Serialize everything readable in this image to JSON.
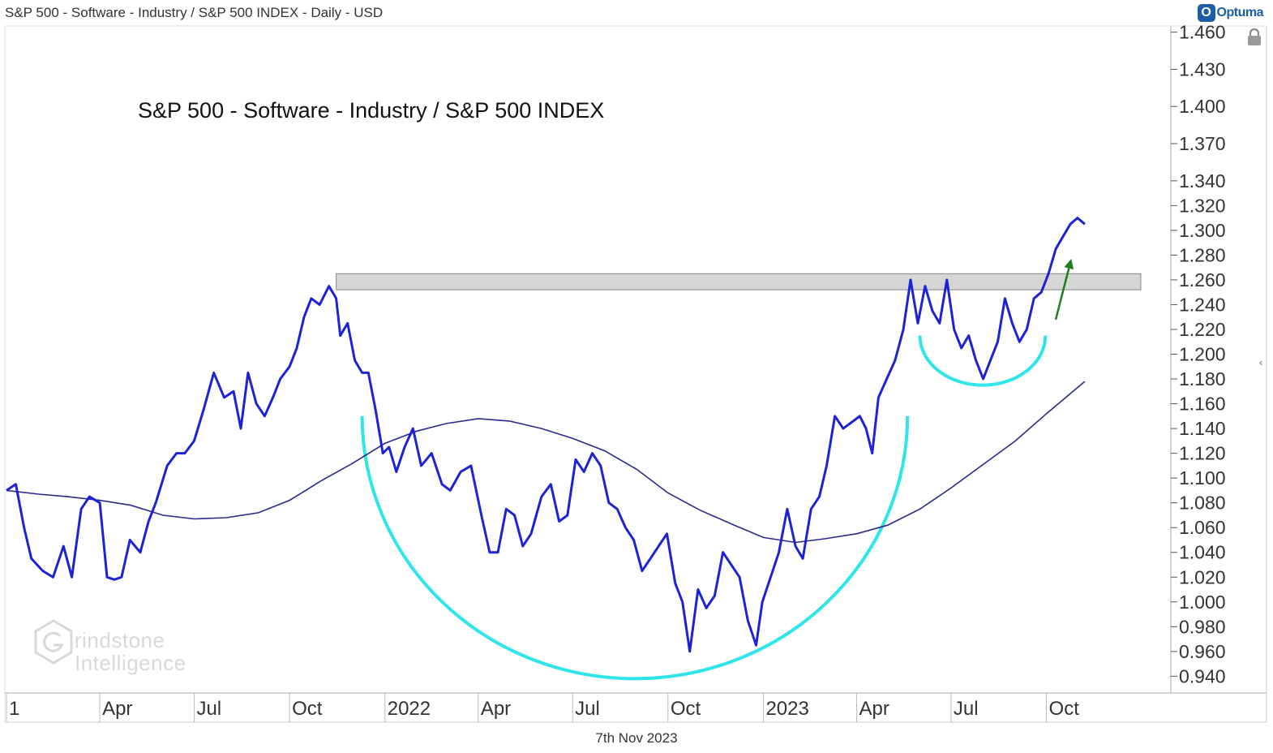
{
  "header": {
    "title": "S&P 500 - Software - Industry / S&P 500 INDEX - Daily - USD",
    "brand": "Optuma",
    "brand_badge": "O"
  },
  "footer": {
    "date": "7th Nov 2023"
  },
  "watermark": {
    "line1": "rindstone",
    "line2": "Intelligence"
  },
  "icons": {
    "lock": "lock-icon",
    "collapse": "chevron-left-icon"
  },
  "colors": {
    "price": "#1c22d6",
    "moving_average": "#2a2a8c",
    "pattern_arc": "#2ee6ea",
    "resistance_band": "#d4d4d4",
    "arrow": "#1e7d1e"
  },
  "chart_data": {
    "type": "line",
    "title": "S&P 500 - Software - Industry / S&P 500 INDEX",
    "x_type": "date",
    "xlim": [
      "2021-01-01",
      "2024-01-29"
    ],
    "ylim": [
      0.9265,
      1.465
    ],
    "y_ticks": [
      0.94,
      0.96,
      0.98,
      1.0,
      1.02,
      1.04,
      1.06,
      1.08,
      1.1,
      1.12,
      1.14,
      1.16,
      1.18,
      1.2,
      1.22,
      1.24,
      1.26,
      1.28,
      1.3,
      1.32,
      1.34,
      1.37,
      1.4,
      1.43,
      1.46
    ],
    "y_tick_labels": [
      "0.940",
      "0.960",
      "0.980",
      "1.000",
      "1.020",
      "1.040",
      "1.060",
      "1.080",
      "1.100",
      "1.120",
      "1.140",
      "1.160",
      "1.180",
      "1.200",
      "1.220",
      "1.240",
      "1.260",
      "1.280",
      "1.300",
      "1.320",
      "1.340",
      "1.370",
      "1.400",
      "1.430",
      "1.460"
    ],
    "x_ticks": [
      {
        "x": "2021-01-01",
        "label": "1"
      },
      {
        "x": "2021-04-01",
        "label": "Apr"
      },
      {
        "x": "2021-07-01",
        "label": "Jul"
      },
      {
        "x": "2021-10-01",
        "label": "Oct"
      },
      {
        "x": "2022-01-01",
        "label": "2022"
      },
      {
        "x": "2022-04-01",
        "label": "Apr"
      },
      {
        "x": "2022-07-01",
        "label": "Jul"
      },
      {
        "x": "2022-10-01",
        "label": "Oct"
      },
      {
        "x": "2023-01-01",
        "label": "2023"
      },
      {
        "x": "2023-04-01",
        "label": "Apr"
      },
      {
        "x": "2023-07-01",
        "label": "Jul"
      },
      {
        "x": "2023-10-01",
        "label": "Oct"
      }
    ],
    "series": [
      {
        "role": "price",
        "x": [
          "2021-01-01",
          "2021-01-10",
          "2021-01-18",
          "2021-01-25",
          "2021-02-05",
          "2021-02-15",
          "2021-02-25",
          "2021-03-05",
          "2021-03-14",
          "2021-03-22",
          "2021-04-01",
          "2021-04-08",
          "2021-04-15",
          "2021-04-22",
          "2021-04-30",
          "2021-05-10",
          "2021-05-18",
          "2021-05-25",
          "2021-06-05",
          "2021-06-14",
          "2021-06-22",
          "2021-07-01",
          "2021-07-10",
          "2021-07-20",
          "2021-07-30",
          "2021-08-08",
          "2021-08-15",
          "2021-08-22",
          "2021-08-30",
          "2021-09-07",
          "2021-09-15",
          "2021-09-22",
          "2021-10-01",
          "2021-10-08",
          "2021-10-15",
          "2021-10-22",
          "2021-10-30",
          "2021-11-08",
          "2021-11-15",
          "2021-11-19",
          "2021-11-26",
          "2021-12-03",
          "2021-12-10",
          "2021-12-16",
          "2021-12-23",
          "2021-12-30",
          "2022-01-05",
          "2022-01-12",
          "2022-01-20",
          "2022-01-28",
          "2022-02-05",
          "2022-02-15",
          "2022-02-25",
          "2022-03-05",
          "2022-03-15",
          "2022-03-25",
          "2022-04-04",
          "2022-04-12",
          "2022-04-20",
          "2022-04-28",
          "2022-05-06",
          "2022-05-14",
          "2022-05-22",
          "2022-06-01",
          "2022-06-10",
          "2022-06-18",
          "2022-06-26",
          "2022-07-04",
          "2022-07-12",
          "2022-07-20",
          "2022-07-28",
          "2022-08-05",
          "2022-08-13",
          "2022-08-21",
          "2022-08-29",
          "2022-09-06",
          "2022-09-14",
          "2022-09-22",
          "2022-09-30",
          "2022-10-08",
          "2022-10-15",
          "2022-10-22",
          "2022-10-30",
          "2022-11-07",
          "2022-11-15",
          "2022-11-23",
          "2022-12-01",
          "2022-12-09",
          "2022-12-17",
          "2022-12-25",
          "2022-12-31",
          "2023-01-08",
          "2023-01-16",
          "2023-01-24",
          "2023-02-01",
          "2023-02-08",
          "2023-02-16",
          "2023-02-24",
          "2023-03-03",
          "2023-03-11",
          "2023-03-19",
          "2023-03-27",
          "2023-04-04",
          "2023-04-10",
          "2023-04-16",
          "2023-04-22",
          "2023-04-30",
          "2023-05-08",
          "2023-05-16",
          "2023-05-23",
          "2023-05-30",
          "2023-06-06",
          "2023-06-13",
          "2023-06-20",
          "2023-06-27",
          "2023-07-04",
          "2023-07-11",
          "2023-07-18",
          "2023-07-25",
          "2023-08-01",
          "2023-08-08",
          "2023-08-15",
          "2023-08-22",
          "2023-08-29",
          "2023-09-05",
          "2023-09-12",
          "2023-09-19",
          "2023-09-26",
          "2023-10-03",
          "2023-10-10",
          "2023-10-17",
          "2023-10-24",
          "2023-10-31",
          "2023-11-07"
        ],
        "values": [
          1.09,
          1.095,
          1.06,
          1.035,
          1.025,
          1.02,
          1.045,
          1.02,
          1.075,
          1.085,
          1.08,
          1.02,
          1.018,
          1.02,
          1.05,
          1.04,
          1.065,
          1.08,
          1.11,
          1.12,
          1.12,
          1.13,
          1.155,
          1.185,
          1.165,
          1.17,
          1.14,
          1.185,
          1.16,
          1.15,
          1.165,
          1.18,
          1.19,
          1.205,
          1.23,
          1.245,
          1.24,
          1.255,
          1.245,
          1.215,
          1.225,
          1.195,
          1.185,
          1.185,
          1.155,
          1.12,
          1.125,
          1.105,
          1.125,
          1.14,
          1.11,
          1.12,
          1.095,
          1.09,
          1.105,
          1.11,
          1.07,
          1.04,
          1.04,
          1.075,
          1.07,
          1.045,
          1.055,
          1.085,
          1.095,
          1.065,
          1.07,
          1.115,
          1.105,
          1.12,
          1.11,
          1.08,
          1.075,
          1.06,
          1.05,
          1.025,
          1.035,
          1.045,
          1.055,
          1.015,
          1.0,
          0.96,
          1.01,
          0.995,
          1.005,
          1.04,
          1.03,
          1.02,
          0.985,
          0.965,
          1.0,
          1.02,
          1.04,
          1.075,
          1.045,
          1.035,
          1.075,
          1.085,
          1.11,
          1.15,
          1.14,
          1.145,
          1.15,
          1.14,
          1.12,
          1.165,
          1.18,
          1.195,
          1.22,
          1.26,
          1.225,
          1.255,
          1.235,
          1.225,
          1.26,
          1.22,
          1.205,
          1.215,
          1.195,
          1.18,
          1.195,
          1.21,
          1.245,
          1.225,
          1.21,
          1.22,
          1.245,
          1.25,
          1.265,
          1.285,
          1.295,
          1.305,
          1.31,
          1.305
        ]
      },
      {
        "role": "moving_average",
        "x": [
          "2021-01-01",
          "2021-02-01",
          "2021-03-01",
          "2021-04-01",
          "2021-05-01",
          "2021-06-01",
          "2021-07-01",
          "2021-08-01",
          "2021-09-01",
          "2021-10-01",
          "2021-11-01",
          "2021-12-01",
          "2022-01-01",
          "2022-02-01",
          "2022-03-01",
          "2022-04-01",
          "2022-05-01",
          "2022-06-01",
          "2022-07-01",
          "2022-08-01",
          "2022-09-01",
          "2022-10-01",
          "2022-11-01",
          "2022-12-01",
          "2023-01-01",
          "2023-02-01",
          "2023-03-01",
          "2023-04-01",
          "2023-05-01",
          "2023-06-01",
          "2023-07-01",
          "2023-08-01",
          "2023-09-01",
          "2023-10-01",
          "2023-11-07"
        ],
        "values": [
          1.09,
          1.087,
          1.085,
          1.082,
          1.078,
          1.07,
          1.067,
          1.068,
          1.072,
          1.082,
          1.098,
          1.112,
          1.128,
          1.138,
          1.144,
          1.148,
          1.146,
          1.14,
          1.132,
          1.122,
          1.107,
          1.088,
          1.074,
          1.063,
          1.052,
          1.048,
          1.051,
          1.055,
          1.062,
          1.075,
          1.092,
          1.111,
          1.13,
          1.152,
          1.178
        ]
      }
    ],
    "annotations": [
      {
        "type": "band",
        "x_start": "2021-11-15",
        "x_end": "2023-12-31",
        "y_low": 1.252,
        "y_high": 1.265
      },
      {
        "type": "arc",
        "x_start": "2021-12-10",
        "x_end": "2023-05-20",
        "y_top": 1.15,
        "y_bottom": 0.938
      },
      {
        "type": "arc",
        "x_start": "2023-06-01",
        "x_end": "2023-09-30",
        "y_top": 1.215,
        "y_bottom": 1.175
      },
      {
        "type": "arrow",
        "x_start": "2023-10-10",
        "y_start": 1.228,
        "x_end": "2023-10-25",
        "y_end": 1.277
      }
    ]
  }
}
